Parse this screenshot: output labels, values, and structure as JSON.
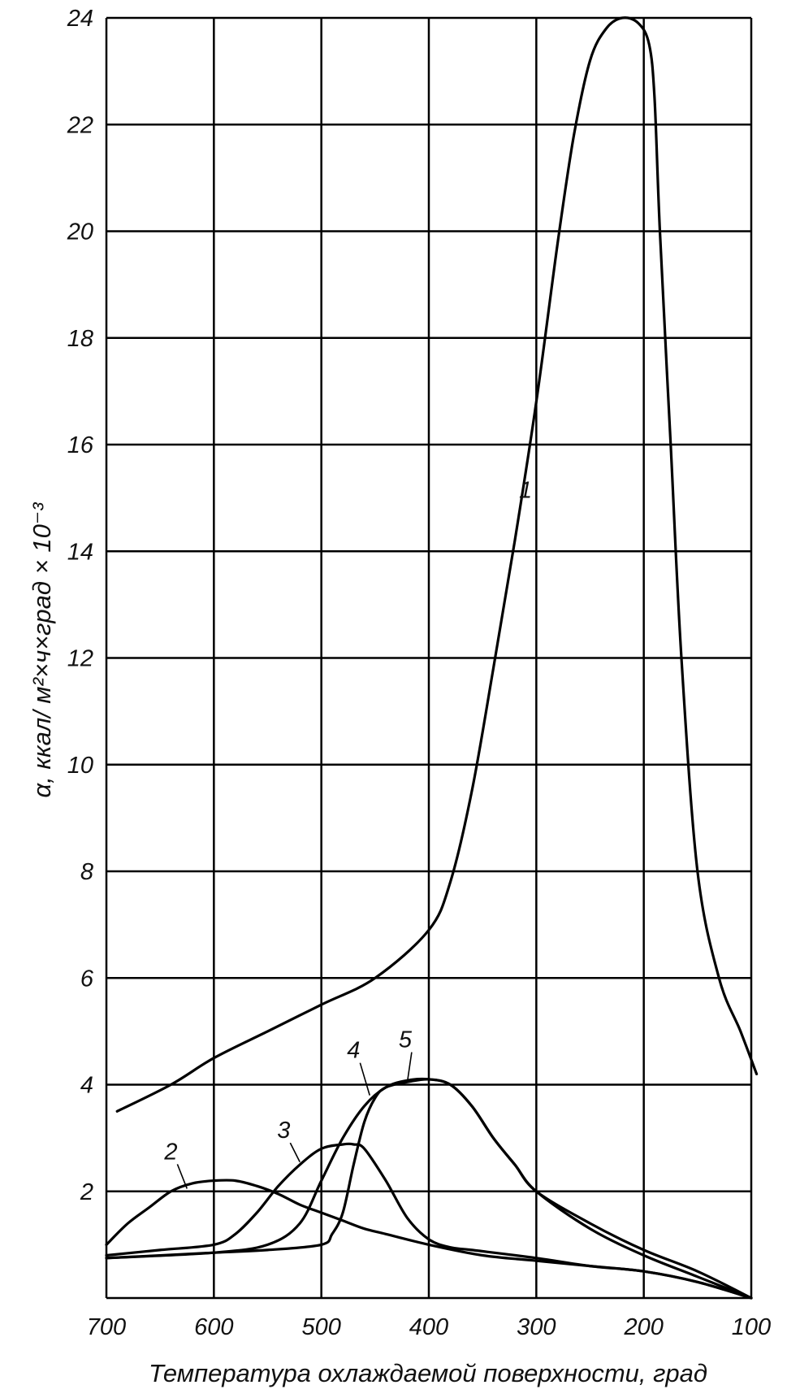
{
  "chart_data": {
    "type": "line",
    "xlabel": "Температура охлаждаемой поверхности, град",
    "ylabel": "α, ккал/ м²×ч×град × 10⁻³",
    "xlim": [
      700,
      100
    ],
    "ylim": [
      0,
      24
    ],
    "x_ticks": [
      "700",
      "600",
      "500",
      "400",
      "300",
      "200",
      "100"
    ],
    "y_ticks": [
      "2",
      "4",
      "6",
      "8",
      "10",
      "12",
      "14",
      "16",
      "18",
      "20",
      "22",
      "24"
    ],
    "grid": true,
    "series": [
      {
        "name": "1",
        "x": [
          690,
          640,
          600,
          550,
          500,
          450,
          400,
          380,
          360,
          340,
          320,
          300,
          280,
          265,
          250,
          235,
          220,
          205,
          195,
          190,
          185,
          175,
          165,
          150,
          130,
          110,
          95
        ],
        "y": [
          3.5,
          4.0,
          4.5,
          5.0,
          5.5,
          6.0,
          6.9,
          7.8,
          9.5,
          11.8,
          14.2,
          16.8,
          19.8,
          21.8,
          23.2,
          23.8,
          24.0,
          23.9,
          23.5,
          22.5,
          20.0,
          16.0,
          12.0,
          8.0,
          6.0,
          5.0,
          4.2
        ]
      },
      {
        "name": "2",
        "x": [
          700,
          680,
          660,
          640,
          620,
          600,
          580,
          560,
          540,
          520,
          500,
          480,
          460,
          440,
          400,
          350,
          300,
          250,
          200,
          150,
          100
        ],
        "y": [
          1.0,
          1.4,
          1.7,
          2.0,
          2.15,
          2.2,
          2.2,
          2.1,
          1.95,
          1.75,
          1.6,
          1.45,
          1.3,
          1.2,
          1.0,
          0.8,
          0.7,
          0.6,
          0.5,
          0.3,
          0.0
        ]
      },
      {
        "name": "3",
        "x": [
          700,
          650,
          600,
          580,
          560,
          540,
          520,
          500,
          480,
          470,
          460,
          440,
          420,
          400,
          380,
          360,
          300,
          250,
          200,
          150,
          100
        ],
        "y": [
          0.8,
          0.9,
          1.0,
          1.2,
          1.6,
          2.1,
          2.5,
          2.8,
          2.88,
          2.88,
          2.8,
          2.2,
          1.5,
          1.1,
          0.95,
          0.9,
          0.75,
          0.6,
          0.5,
          0.3,
          0.0
        ]
      },
      {
        "name": "4",
        "x": [
          700,
          600,
          550,
          520,
          500,
          480,
          460,
          440,
          420,
          400,
          380,
          360,
          340,
          320,
          300,
          250,
          200,
          150,
          100
        ],
        "y": [
          0.75,
          0.85,
          1.0,
          1.4,
          2.2,
          3.0,
          3.6,
          3.95,
          4.08,
          4.1,
          4.0,
          3.6,
          3.0,
          2.5,
          2.0,
          1.4,
          0.9,
          0.5,
          0.0
        ]
      },
      {
        "name": "5",
        "x": [
          700,
          600,
          550,
          500,
          490,
          480,
          470,
          460,
          450,
          440,
          420,
          400,
          380,
          360,
          340,
          320,
          300,
          250,
          200,
          150,
          100
        ],
        "y": [
          0.75,
          0.85,
          0.9,
          1.0,
          1.2,
          1.6,
          2.5,
          3.3,
          3.75,
          3.95,
          4.05,
          4.1,
          4.0,
          3.6,
          3.0,
          2.5,
          2.0,
          1.3,
          0.8,
          0.4,
          0.0
        ]
      }
    ],
    "curve_labels": [
      "1",
      "2",
      "3",
      "4",
      "5"
    ]
  }
}
